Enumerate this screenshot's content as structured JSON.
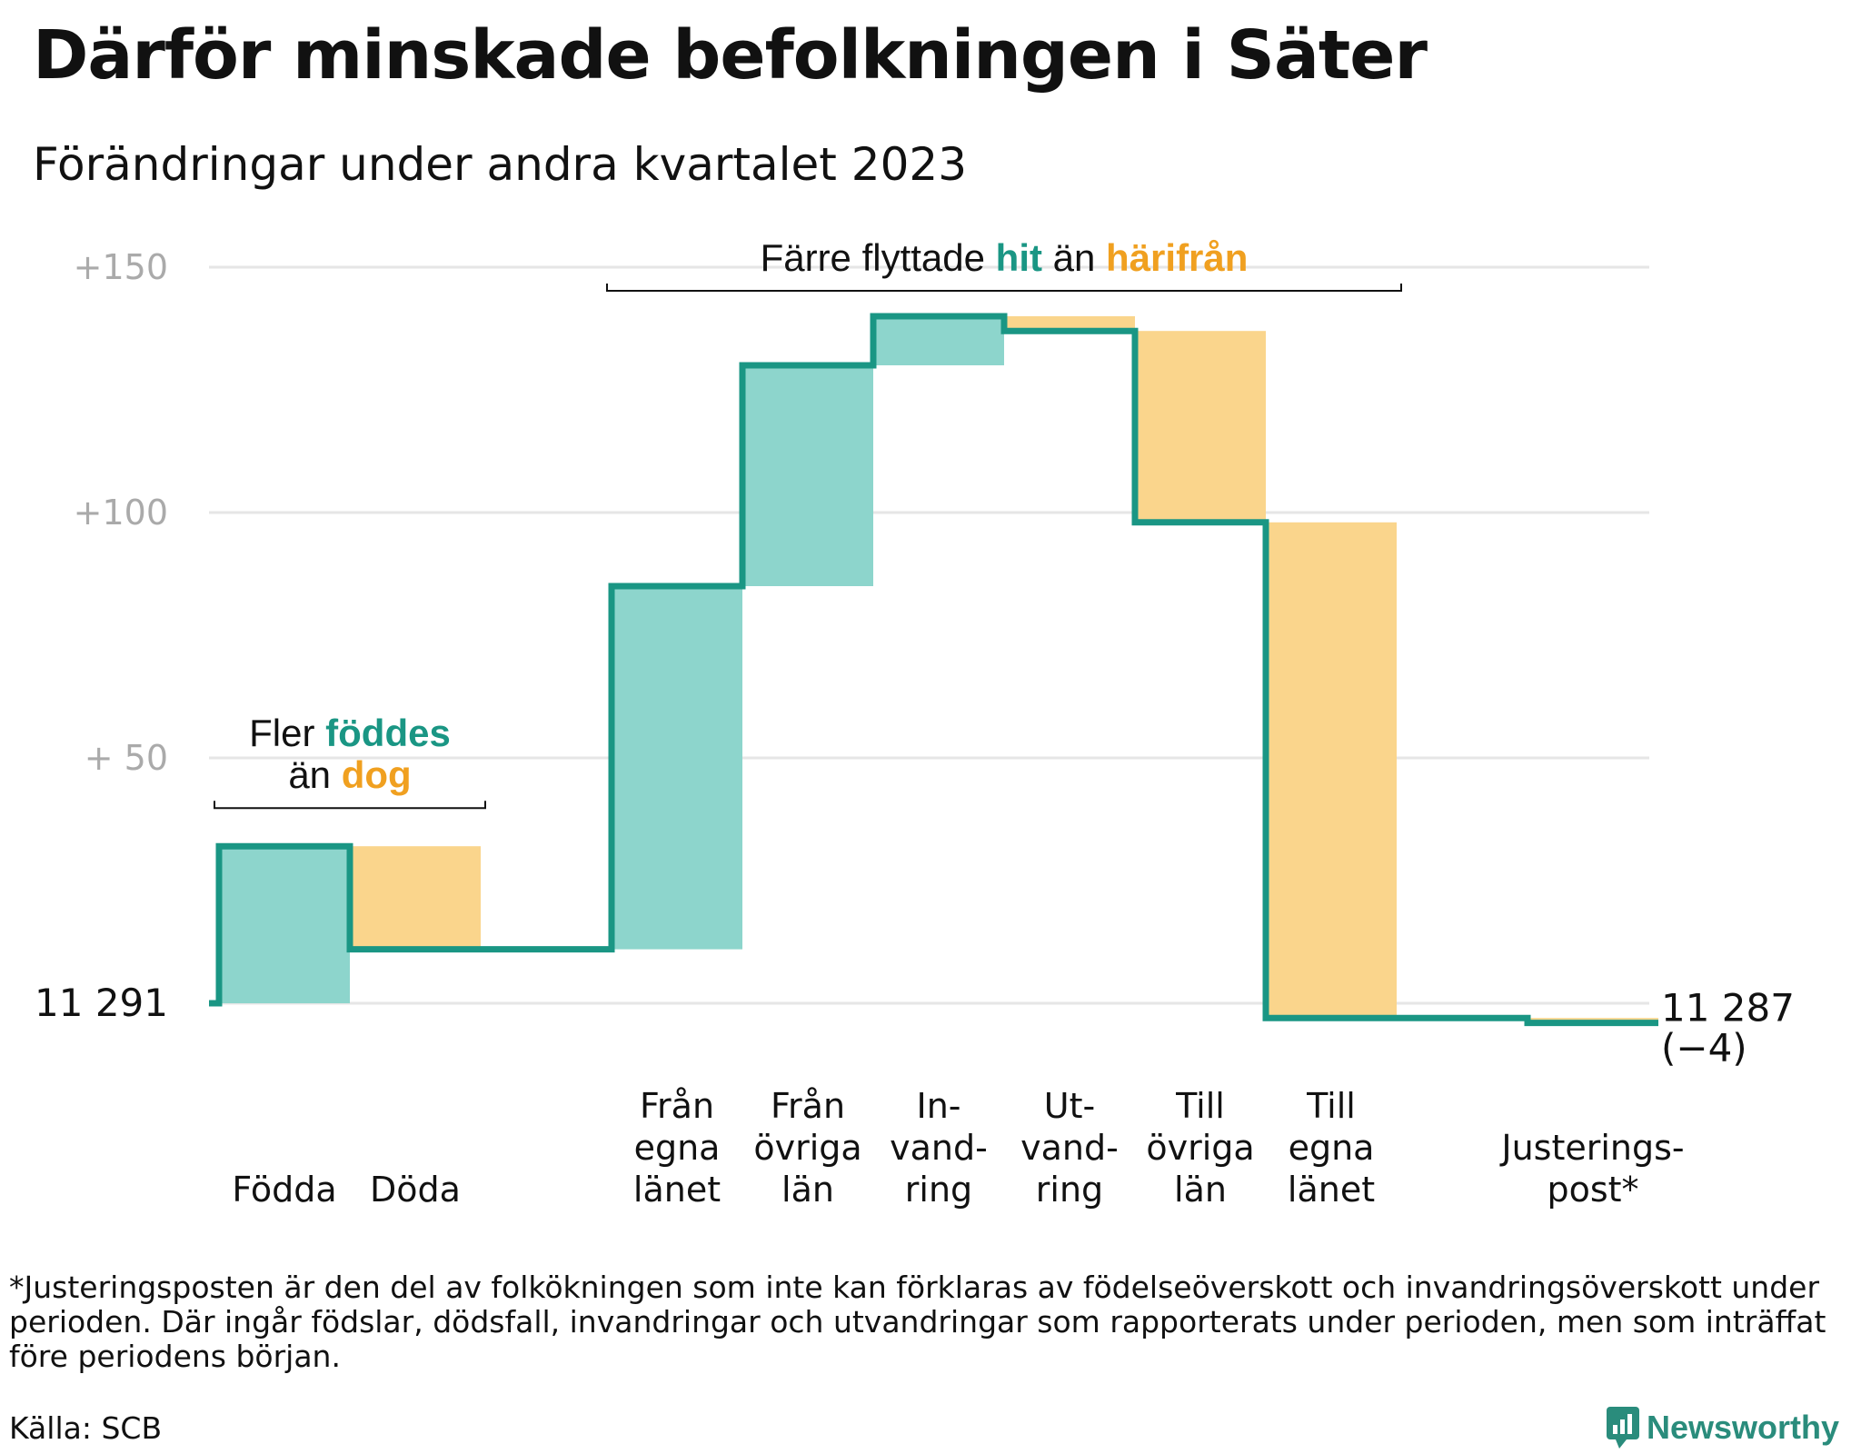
{
  "title": "Därför minskade befolkningen i Säter",
  "subtitle": "Förändringar under andra kvartalet 2023",
  "footnote": "*Justeringsposten är den del av folkökningen som inte kan förklaras av födelseöverskott och invandringsöverskott under perioden. Där ingår födslar, dödsfall, invandringar och utvandringar som rapporterats under perioden, men som inträffat före periodens början.",
  "source": "Källa: SCB",
  "brand": "Newsworthy",
  "colors": {
    "increase": "#8dd5cc",
    "decrease": "#fad58c",
    "line": "#1a9684",
    "grid": "#e6e6e6",
    "gray": "#aaaaaa",
    "teal_text": "#1a9684",
    "orange_text": "#f0a020"
  },
  "chart_data": {
    "type": "waterfall",
    "start_value": 11291,
    "start_label": "11 291",
    "end_value": 11287,
    "end_label": "11 287",
    "end_change_label": "(−4)",
    "ylim": [
      -5,
      150
    ],
    "yticks": [
      {
        "value": 150,
        "label": "+150"
      },
      {
        "value": 100,
        "label": "+100"
      },
      {
        "value": 50,
        "label": "+  50"
      },
      {
        "value": 0,
        "label": ""
      }
    ],
    "steps": [
      {
        "label_lines": [
          "Födda"
        ],
        "delta": 32,
        "kind": "increase"
      },
      {
        "label_lines": [
          "Döda"
        ],
        "delta": -21,
        "kind": "decrease"
      },
      {
        "label_lines": [
          ""
        ],
        "delta": 0,
        "kind": "gap"
      },
      {
        "label_lines": [
          "Från",
          "egna",
          "länet"
        ],
        "delta": 74,
        "kind": "increase"
      },
      {
        "label_lines": [
          "Från",
          "övriga",
          "län"
        ],
        "delta": 45,
        "kind": "increase"
      },
      {
        "label_lines": [
          "In-",
          "vand-",
          "ring"
        ],
        "delta": 10,
        "kind": "increase"
      },
      {
        "label_lines": [
          "Ut-",
          "vand-",
          "ring"
        ],
        "delta": -3,
        "kind": "decrease"
      },
      {
        "label_lines": [
          "Till",
          "övriga",
          "län"
        ],
        "delta": -39,
        "kind": "decrease"
      },
      {
        "label_lines": [
          "Till",
          "egna",
          "länet"
        ],
        "delta": -101,
        "kind": "decrease"
      },
      {
        "label_lines": [
          ""
        ],
        "delta": 0,
        "kind": "gap"
      },
      {
        "label_lines": [
          "Justerings-",
          "post*"
        ],
        "delta": -1,
        "kind": "decrease"
      }
    ],
    "annotations": [
      {
        "lines": [
          [
            {
              "text": "Fler ",
              "style": "plain"
            },
            {
              "text": "föddes",
              "style": "teal"
            }
          ],
          [
            {
              "text": "än ",
              "style": "plain"
            },
            {
              "text": "dog",
              "style": "orange"
            }
          ]
        ],
        "from_step": 0,
        "to_step": 1
      },
      {
        "lines": [
          [
            {
              "text": "Färre flyttade ",
              "style": "plain"
            },
            {
              "text": "hit",
              "style": "teal"
            },
            {
              "text": "  än ",
              "style": "plain"
            },
            {
              "text": "härifrån",
              "style": "orange"
            }
          ]
        ],
        "from_step": 3,
        "to_step": 8
      }
    ]
  }
}
